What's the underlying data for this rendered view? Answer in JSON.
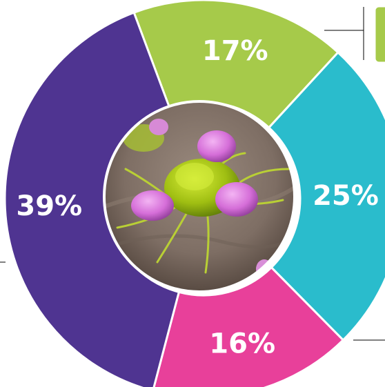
{
  "chart_data": {
    "type": "pie",
    "variant": "donut",
    "title": "",
    "center_image": "cell-cluster-micrograph",
    "slices": [
      {
        "label": "17%",
        "value": 17,
        "color": "#a6ca4a"
      },
      {
        "label": "25%",
        "value": 25,
        "color": "#2abccc"
      },
      {
        "label": "16%",
        "value": 16,
        "color": "#e8409a"
      },
      {
        "label": "39%",
        "value": 39,
        "color": "#4f3491"
      }
    ],
    "legend": {
      "placement": "top-right",
      "swatch_color": "#a6ca4a"
    }
  }
}
